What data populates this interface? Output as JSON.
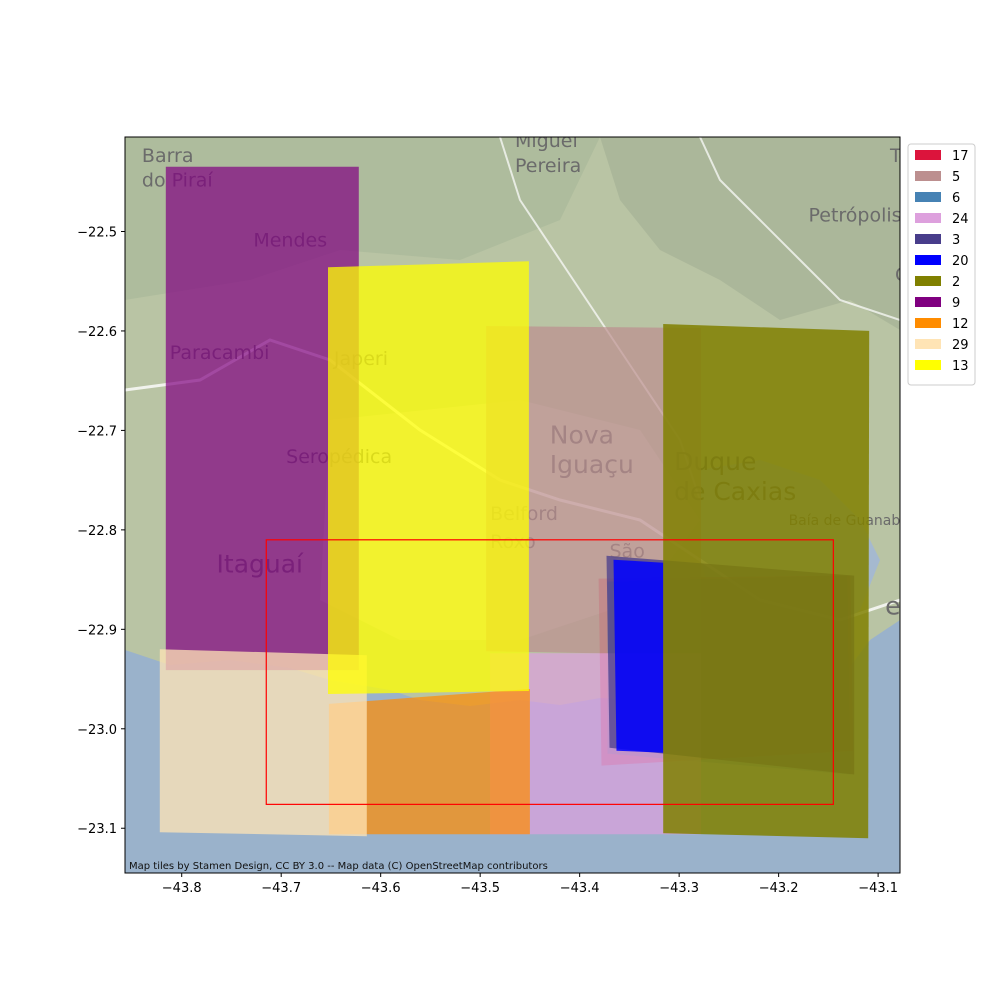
{
  "chart_data": {
    "type": "map",
    "x_ticks": [
      -43.8,
      -43.7,
      -43.6,
      -43.5,
      -43.4,
      -43.3,
      -43.2,
      -43.1
    ],
    "y_ticks": [
      -22.5,
      -22.6,
      -22.7,
      -22.8,
      -22.9,
      -23.0,
      -23.1
    ],
    "x_tick_labels": [
      "−43.8",
      "−43.7",
      "−43.6",
      "−43.5",
      "−43.4",
      "−43.3",
      "−43.2",
      "−43.1"
    ],
    "y_tick_labels": [
      "−22.5",
      "−22.6",
      "−22.7",
      "−22.8",
      "−22.9",
      "−23.0",
      "−23.1"
    ],
    "xlim": [
      -43.857,
      -43.078
    ],
    "ylim": [
      -23.145,
      -22.405
    ],
    "legend_position": "upper-right, outside axes",
    "attribution": "Map tiles by Stamen Design, CC BY 3.0 -- Map data (C) OpenStreetMap contributors",
    "place_labels": [
      {
        "text": "Barra",
        "lon": -43.84,
        "lat": -22.43,
        "size": "mid"
      },
      {
        "text": "do Piraí",
        "lon": -43.84,
        "lat": -22.455,
        "size": "mid"
      },
      {
        "text": "Miguel",
        "lon": -43.465,
        "lat": -22.415,
        "size": "mid"
      },
      {
        "text": "Pereira",
        "lon": -43.465,
        "lat": -22.44,
        "size": "mid"
      },
      {
        "text": "Petrópolis",
        "lon": -43.17,
        "lat": -22.49,
        "size": "mid"
      },
      {
        "text": "Mendes",
        "lon": -43.728,
        "lat": -22.515,
        "size": "mid"
      },
      {
        "text": "Paracambi",
        "lon": -43.812,
        "lat": -22.628,
        "size": "mid"
      },
      {
        "text": "Japeri",
        "lon": -43.647,
        "lat": -22.634,
        "size": "mid"
      },
      {
        "text": "Seropédica",
        "lon": -43.695,
        "lat": -22.733,
        "size": "mid"
      },
      {
        "text": "Nova",
        "lon": -43.43,
        "lat": -22.713,
        "size": "big"
      },
      {
        "text": "Iguaçu",
        "lon": -43.43,
        "lat": -22.743,
        "size": "big"
      },
      {
        "text": "Duque",
        "lon": -43.305,
        "lat": -22.74,
        "size": "big"
      },
      {
        "text": "de Caxias",
        "lon": -43.305,
        "lat": -22.77,
        "size": "big"
      },
      {
        "text": "Belford",
        "lon": -43.49,
        "lat": -22.79,
        "size": "mid"
      },
      {
        "text": "Roxo",
        "lon": -43.49,
        "lat": -22.818,
        "size": "mid"
      },
      {
        "text": "São",
        "lon": -43.37,
        "lat": -22.828,
        "size": "mid"
      },
      {
        "text": "Itaguaí",
        "lon": -43.765,
        "lat": -22.843,
        "size": "big"
      },
      {
        "text": "Baía de Guanabara",
        "lon": -43.19,
        "lat": -22.795,
        "size": "small"
      },
      {
        "text": "eiro",
        "lon": -43.093,
        "lat": -22.885,
        "size": "big"
      },
      {
        "text": "Te",
        "lon": -43.088,
        "lat": -22.43,
        "size": "mid"
      },
      {
        "text": "G",
        "lon": -43.083,
        "lat": -22.55,
        "size": "mid"
      }
    ],
    "series": [
      {
        "name": "17",
        "color": "#dc143c",
        "opacity": 0.4,
        "polygon": [
          [
            -43.381,
            -22.849
          ],
          [
            -43.128,
            -22.846
          ],
          [
            -43.125,
            -23.022
          ],
          [
            -43.378,
            -23.037
          ]
        ]
      },
      {
        "name": "5",
        "color": "#bc8f8f",
        "opacity": 0.7,
        "polygon": [
          [
            -43.494,
            -22.595
          ],
          [
            -43.278,
            -22.597
          ],
          [
            -43.278,
            -22.926
          ],
          [
            -43.494,
            -22.922
          ]
        ]
      },
      {
        "name": "6",
        "color": "#4682b4",
        "opacity": 0.4,
        "polygon": [
          [
            -43.372,
            -22.852
          ],
          [
            -43.131,
            -22.846
          ],
          [
            -43.128,
            -23.046
          ],
          [
            -43.372,
            -23.025
          ]
        ]
      },
      {
        "name": "24",
        "color": "#dda0dd",
        "opacity": 0.7,
        "polygon": [
          [
            -43.49,
            -22.924
          ],
          [
            -43.278,
            -22.924
          ],
          [
            -43.278,
            -23.106
          ],
          [
            -43.49,
            -23.106
          ]
        ]
      },
      {
        "name": "3",
        "color": "#483d8b",
        "opacity": 0.75,
        "polygon": [
          [
            -43.373,
            -22.826
          ],
          [
            -43.124,
            -22.846
          ],
          [
            -43.124,
            -23.046
          ],
          [
            -43.37,
            -23.019
          ]
        ]
      },
      {
        "name": "20",
        "color": "#0000ff",
        "opacity": 0.85,
        "polygon": [
          [
            -43.366,
            -22.83
          ],
          [
            -43.316,
            -22.833
          ],
          [
            -43.316,
            -23.024
          ],
          [
            -43.363,
            -23.022
          ]
        ]
      },
      {
        "name": "2",
        "color": "#808000",
        "opacity": 0.85,
        "polygon": [
          [
            -43.316,
            -22.593
          ],
          [
            -43.109,
            -22.6
          ],
          [
            -43.11,
            -23.11
          ],
          [
            -43.316,
            -23.105
          ]
        ]
      },
      {
        "name": "9",
        "color": "#800080",
        "opacity": 0.7,
        "polygon": [
          [
            -43.816,
            -22.435
          ],
          [
            -43.622,
            -22.435
          ],
          [
            -43.622,
            -22.941
          ],
          [
            -43.816,
            -22.941
          ]
        ]
      },
      {
        "name": "12",
        "color": "#ff8c00",
        "opacity": 0.7,
        "polygon": [
          [
            -43.652,
            -22.975
          ],
          [
            -43.45,
            -22.96
          ],
          [
            -43.45,
            -23.106
          ],
          [
            -43.652,
            -23.106
          ]
        ]
      },
      {
        "name": "29",
        "color": "#ffe4b5",
        "opacity": 0.75,
        "polygon": [
          [
            -43.822,
            -22.92
          ],
          [
            -43.614,
            -22.926
          ],
          [
            -43.614,
            -23.108
          ],
          [
            -43.822,
            -23.104
          ]
        ]
      },
      {
        "name": "13",
        "color": "#ffff00",
        "opacity": 0.75,
        "polygon": [
          [
            -43.653,
            -22.536
          ],
          [
            -43.451,
            -22.53
          ],
          [
            -43.451,
            -22.962
          ],
          [
            -43.653,
            -22.965
          ]
        ]
      }
    ],
    "bounding_box": {
      "color": "#ff0000",
      "lon_min": -43.715,
      "lon_max": -43.145,
      "lat_min": -23.076,
      "lat_max": -22.81
    }
  }
}
